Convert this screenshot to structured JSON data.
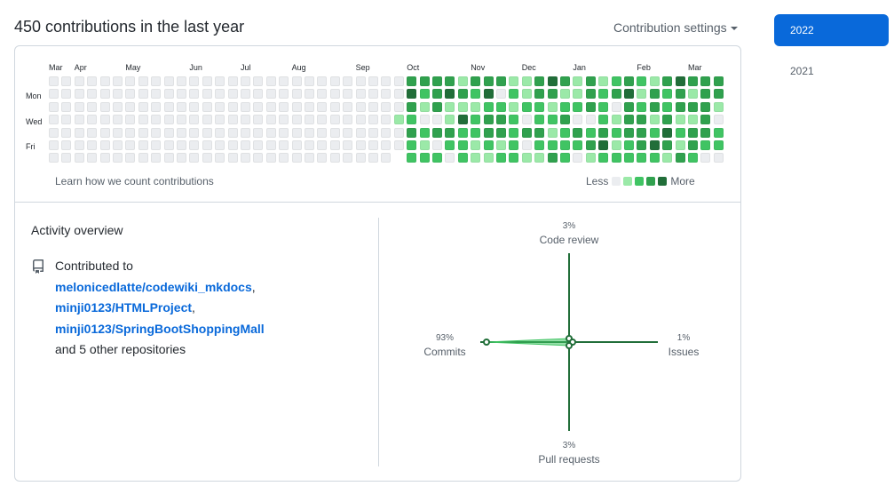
{
  "header": {
    "title": "450 contributions in the last year",
    "settings_label": "Contribution settings"
  },
  "calendar": {
    "months": [
      {
        "label": "Mar",
        "week": 0
      },
      {
        "label": "Apr",
        "week": 2
      },
      {
        "label": "May",
        "week": 6
      },
      {
        "label": "Jun",
        "week": 11
      },
      {
        "label": "Jul",
        "week": 15
      },
      {
        "label": "Aug",
        "week": 19
      },
      {
        "label": "Sep",
        "week": 24
      },
      {
        "label": "Oct",
        "week": 28
      },
      {
        "label": "Nov",
        "week": 33
      },
      {
        "label": "Dec",
        "week": 37
      },
      {
        "label": "Jan",
        "week": 41
      },
      {
        "label": "Feb",
        "week": 46
      },
      {
        "label": "Mar",
        "week": 50
      }
    ],
    "days": {
      "mon": "Mon",
      "wed": "Wed",
      "fri": "Fri"
    },
    "level_colors": [
      "#ebedf0",
      "#9be9a8",
      "#40c463",
      "#30a14e",
      "#216e39"
    ],
    "weeks": [
      "0000000",
      "0000000",
      "0000000",
      "0000000",
      "0000000",
      "0000000",
      "0000000",
      "0000000",
      "0000000",
      "0000000",
      "0000000",
      "0000000",
      "0000000",
      "0000000",
      "0000000",
      "0000000",
      "0000000",
      "0000000",
      "0000000",
      "0000000",
      "0000000",
      "0000000",
      "0000000",
      "0000000",
      "0000000",
      "0000000",
      "0000000",
      "000100",
      "3432322",
      "3210212",
      "3330302",
      "3411320",
      "1314222",
      "3212211",
      "3423321",
      "3023312",
      "1212222",
      "1120301",
      "3322321",
      "4312123",
      "3123222",
      "1120320",
      "3330231",
      "1222342",
      "2301212",
      "3433322",
      "2123332",
      "1331242",
      "3223431",
      "4331213",
      "3131332",
      "3333320",
      "3310220"
    ],
    "learn_link": "Learn how we count contributions",
    "legend_less": "Less",
    "legend_more": "More"
  },
  "activity": {
    "heading": "Activity overview",
    "contributed_prefix": "Contributed to",
    "repos": [
      "melonicedlatte/codewiki_mkdocs",
      "minji0123/HTMLProject",
      "minji0123/SpringBootShoppingMall"
    ],
    "other_repos": "and 5 other repositories",
    "radar": {
      "code_review": {
        "label": "Code review",
        "percent": "3%",
        "value": 3
      },
      "issues": {
        "label": "Issues",
        "percent": "1%",
        "value": 1
      },
      "pull_requests": {
        "label": "Pull requests",
        "percent": "3%",
        "value": 3
      },
      "commits": {
        "label": "Commits",
        "percent": "93%",
        "value": 93
      },
      "axis_color": "#216e39",
      "fill_color": "#40c463"
    }
  },
  "years": [
    {
      "label": "2022",
      "selected": true
    },
    {
      "label": "2021",
      "selected": false
    }
  ]
}
